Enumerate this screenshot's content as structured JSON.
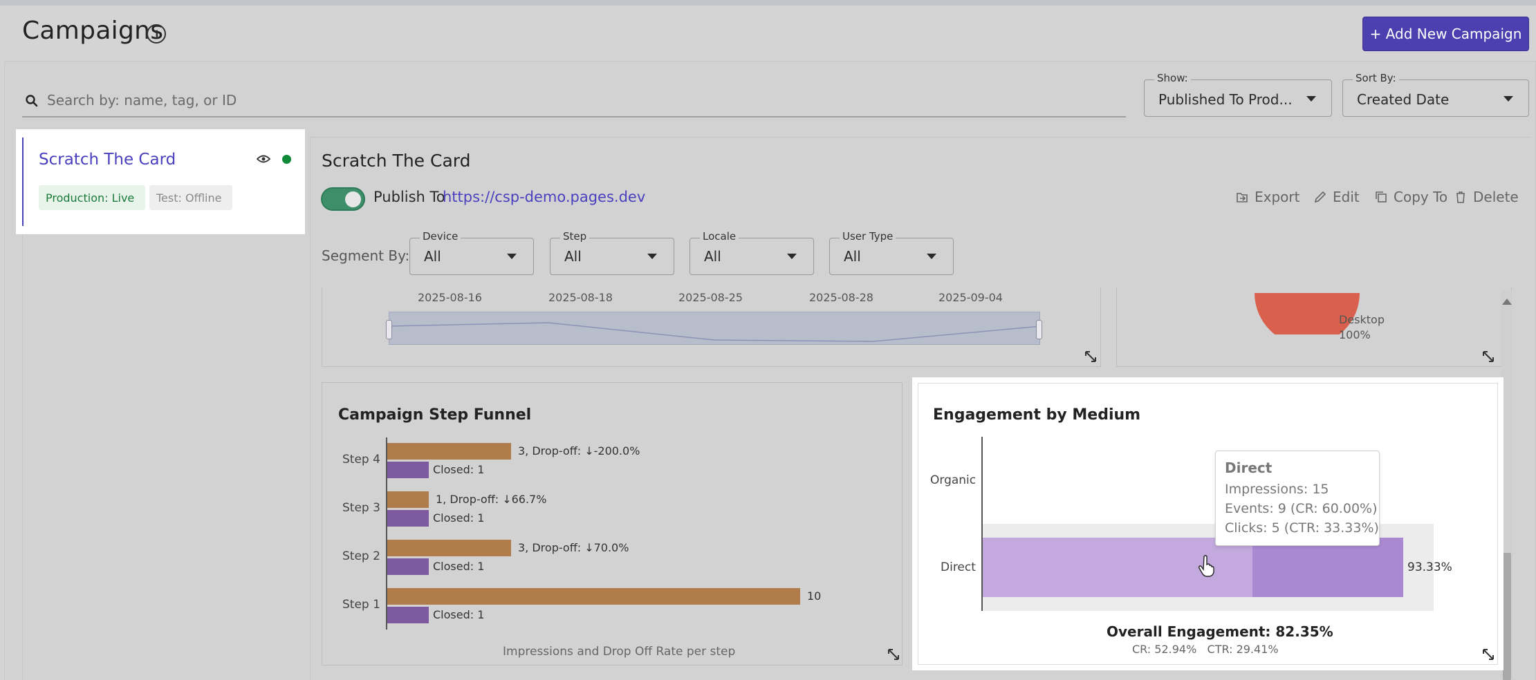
{
  "header": {
    "title": "Campaigns",
    "add_button": "+ Add New Campaign"
  },
  "search": {
    "placeholder": "Search by: name, tag, or ID",
    "value": ""
  },
  "filters": {
    "show_label": "Show:",
    "show_value": "Published To Prod...",
    "sort_label": "Sort By:",
    "sort_value": "Created Date"
  },
  "campaign_list": [
    {
      "title": "Scratch The Card",
      "badge_live": "Production: Live",
      "badge_test": "Test: Offline",
      "status_color": "#0f8a3a"
    }
  ],
  "detail": {
    "title": "Scratch The Card",
    "publish_text": "Publish To",
    "publish_link": "https://csp-demo.pages.dev",
    "publish_enabled": true,
    "actions": {
      "export": "Export",
      "edit": "Edit",
      "copy": "Copy To",
      "delete": "Delete"
    },
    "segment_label": "Segment By:",
    "segments": [
      {
        "label": "Device",
        "value": "All"
      },
      {
        "label": "Step",
        "value": "All"
      },
      {
        "label": "Locale",
        "value": "All"
      },
      {
        "label": "User Type",
        "value": "All"
      }
    ]
  },
  "timeline": {
    "dates": [
      "2025-08-16",
      "2025-08-18",
      "2025-08-25",
      "2025-08-28",
      "2025-09-04"
    ]
  },
  "device_pie": {
    "label": "Desktop",
    "value": "100%",
    "color": "#d9604c"
  },
  "funnel": {
    "title": "Campaign Step Funnel",
    "caption": "Impressions and Drop Off Rate per step",
    "steps": [
      {
        "label": "Step 4",
        "impressions": 3,
        "impressions_text": "3, Drop-off: ↓-200.0%",
        "closed": 1,
        "closed_text": "Closed: 1"
      },
      {
        "label": "Step 3",
        "impressions": 1,
        "impressions_text": "1, Drop-off: ↓66.7%",
        "closed": 1,
        "closed_text": "Closed: 1"
      },
      {
        "label": "Step 2",
        "impressions": 3,
        "impressions_text": "3, Drop-off: ↓70.0%",
        "closed": 1,
        "closed_text": "Closed: 1"
      },
      {
        "label": "Step 1",
        "impressions": 10,
        "impressions_text": "10",
        "closed": 1,
        "closed_text": "Closed: 1"
      }
    ],
    "colors": {
      "impressions": "#b07d4a",
      "closed": "#7d5aa0"
    }
  },
  "engagement": {
    "title": "Engagement by Medium",
    "categories": [
      "Organic",
      "Direct"
    ],
    "direct_value_label": "93.33%",
    "tooltip": {
      "title": "Direct",
      "impressions": "Impressions: 15",
      "events": "Events: 9 (CR: 60.00%)",
      "clicks": "Clicks: 5 (CTR: 33.33%)"
    },
    "overall": "Overall Engagement: 82.35%",
    "overall_sub": "CR: 52.94%   CTR: 29.41%"
  },
  "chart_data": [
    {
      "type": "bar",
      "title": "Campaign Step Funnel",
      "xlabel": "Impressions and Drop Off Rate per step",
      "categories": [
        "Step 4",
        "Step 3",
        "Step 2",
        "Step 1"
      ],
      "series": [
        {
          "name": "Impressions",
          "values": [
            3,
            1,
            3,
            10
          ]
        },
        {
          "name": "Closed",
          "values": [
            1,
            1,
            1,
            1
          ]
        }
      ]
    },
    {
      "type": "bar",
      "title": "Engagement by Medium",
      "categories": [
        "Organic",
        "Direct"
      ],
      "values": [
        0,
        93.33
      ],
      "xlim": [
        0,
        100
      ]
    },
    {
      "type": "pie",
      "categories": [
        "Desktop"
      ],
      "values": [
        100
      ]
    }
  ]
}
